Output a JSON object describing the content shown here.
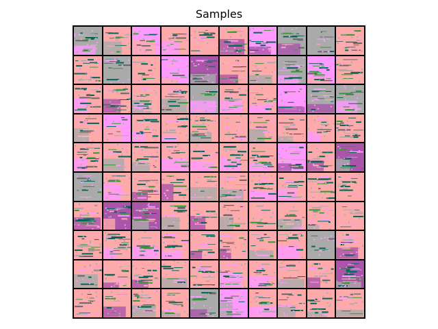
{
  "figure": {
    "title": "Samples"
  },
  "grid": {
    "rows": 10,
    "cols": 10,
    "palette": {
      "light_pink": "#ffaaaa",
      "pink": "#f7b0b8",
      "magenta": "#ff99ff",
      "gray": "#aaaaaa",
      "dark_gray": "#666666",
      "purple": "#aa55aa",
      "dark_green": "#006655",
      "green": "#339933",
      "black": "#000000"
    },
    "tiles": [
      [
        "gray",
        "light_pink",
        "magenta",
        "light_pink",
        "light_pink",
        "light_pink",
        "magenta",
        "gray",
        "gray",
        "light_pink"
      ],
      [
        "light_pink",
        "gray",
        "light_pink",
        "magenta",
        "purple",
        "light_pink",
        "light_pink",
        "gray",
        "magenta",
        "light_pink"
      ],
      [
        "light_pink",
        "light_pink",
        "light_pink",
        "light_pink",
        "gray",
        "light_pink",
        "light_pink",
        "magenta",
        "gray",
        "gray"
      ],
      [
        "light_pink",
        "magenta",
        "light_pink",
        "light_pink",
        "light_pink",
        "light_pink",
        "light_pink",
        "light_pink",
        "light_pink",
        "light_pink"
      ],
      [
        "light_pink",
        "light_pink",
        "light_pink",
        "light_pink",
        "light_pink",
        "light_pink",
        "light_pink",
        "magenta",
        "light_pink",
        "purple"
      ],
      [
        "gray",
        "light_pink",
        "light_pink",
        "light_pink",
        "light_pink",
        "light_pink",
        "light_pink",
        "light_pink",
        "light_pink",
        "light_pink"
      ],
      [
        "light_pink",
        "purple",
        "purple",
        "light_pink",
        "light_pink",
        "light_pink",
        "light_pink",
        "light_pink",
        "light_pink",
        "light_pink"
      ],
      [
        "light_pink",
        "light_pink",
        "light_pink",
        "light_pink",
        "light_pink",
        "light_pink",
        "light_pink",
        "light_pink",
        "gray",
        "light_pink"
      ],
      [
        "light_pink",
        "light_pink",
        "light_pink",
        "light_pink",
        "light_pink",
        "light_pink",
        "light_pink",
        "light_pink",
        "light_pink",
        "purple"
      ],
      [
        "light_pink",
        "light_pink",
        "light_pink",
        "light_pink",
        "gray",
        "magenta",
        "light_pink",
        "light_pink",
        "light_pink",
        "light_pink"
      ]
    ]
  }
}
